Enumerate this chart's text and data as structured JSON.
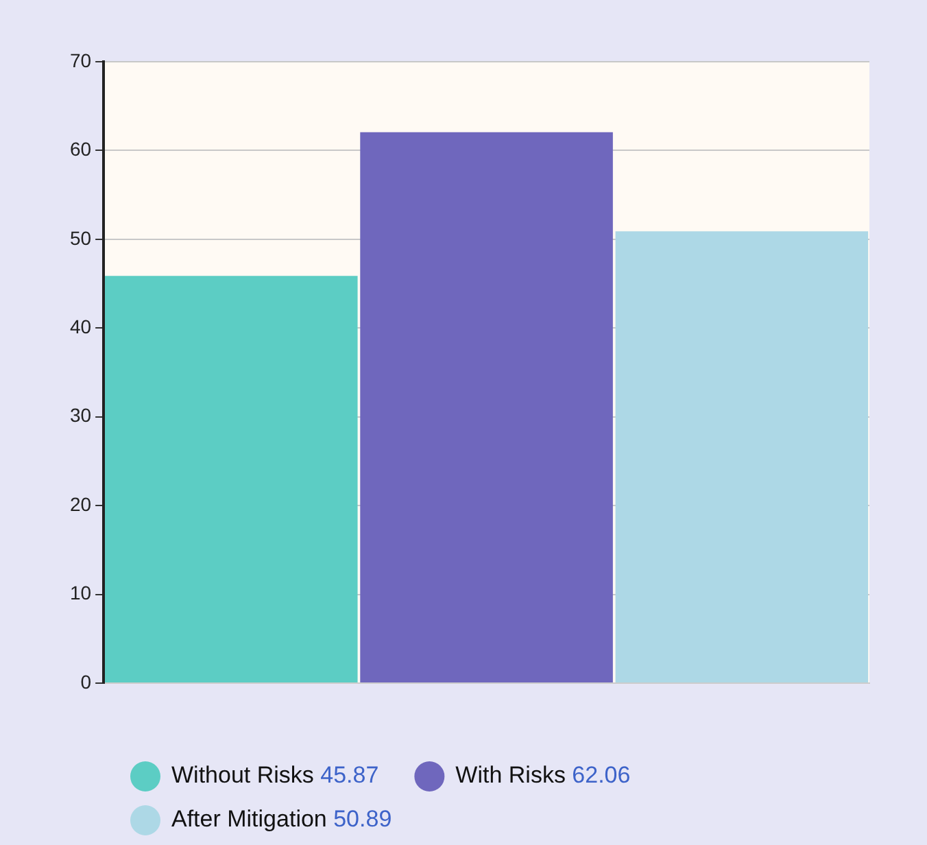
{
  "chart_data": {
    "type": "bar",
    "categories": [
      null
    ],
    "series": [
      {
        "name": "Without Risks",
        "color": "#5ccdc4",
        "values": [
          45.87
        ]
      },
      {
        "name": "With Risks",
        "color": "#6f67bd",
        "values": [
          62.06
        ]
      },
      {
        "name": "After Mitigation",
        "color": "#add8e6",
        "values": [
          50.89
        ]
      }
    ],
    "annotations": [
      "45.87",
      "62.06",
      "50.89"
    ],
    "ylim": [
      0,
      70
    ],
    "yticks": [
      0,
      10,
      20,
      30,
      40,
      50,
      60,
      70
    ],
    "grid": "y",
    "legend": "bottom",
    "tick_labels": "y"
  }
}
